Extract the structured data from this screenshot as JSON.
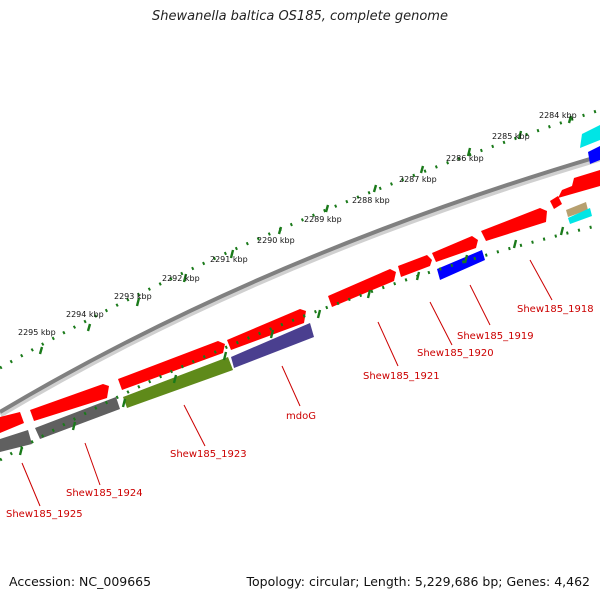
{
  "title": "Shewanella baltica OS185, complete genome",
  "footer": {
    "accession_label": "Accession:",
    "accession": "NC_009665",
    "topology_label": "Topology:",
    "topology": "circular;",
    "length_label": "Length:",
    "length": "5,229,686 bp;",
    "genes_label": "Genes:",
    "genes": "4,462"
  },
  "colors": {
    "gene_forward": "#ff0000",
    "gene_reverse_blue": "#0000ff",
    "gene_grey": "#606060",
    "gene_olive": "#5f8a1a",
    "gene_purple": "#4a3f8f",
    "gene_cyan": "#00e5e5",
    "gene_tan": "#b7a070",
    "tick_green": "#1a7a1a",
    "backbone": "#808080",
    "label_red": "#cc0000"
  },
  "tick_labels": [
    "2284 kbp",
    "2285 kbp",
    "2286 kbp",
    "2287 kbp",
    "2288 kbp",
    "2289 kbp",
    "2290 kbp",
    "2291 kbp",
    "2292 kbp",
    "2293 kbp",
    "2294 kbp",
    "2295 kbp"
  ],
  "gene_labels": [
    "Shew185_1918",
    "Shew185_1919",
    "Shew185_1920",
    "Shew185_1921",
    "mdoG",
    "Shew185_1923",
    "Shew185_1924",
    "Shew185_1925"
  ]
}
